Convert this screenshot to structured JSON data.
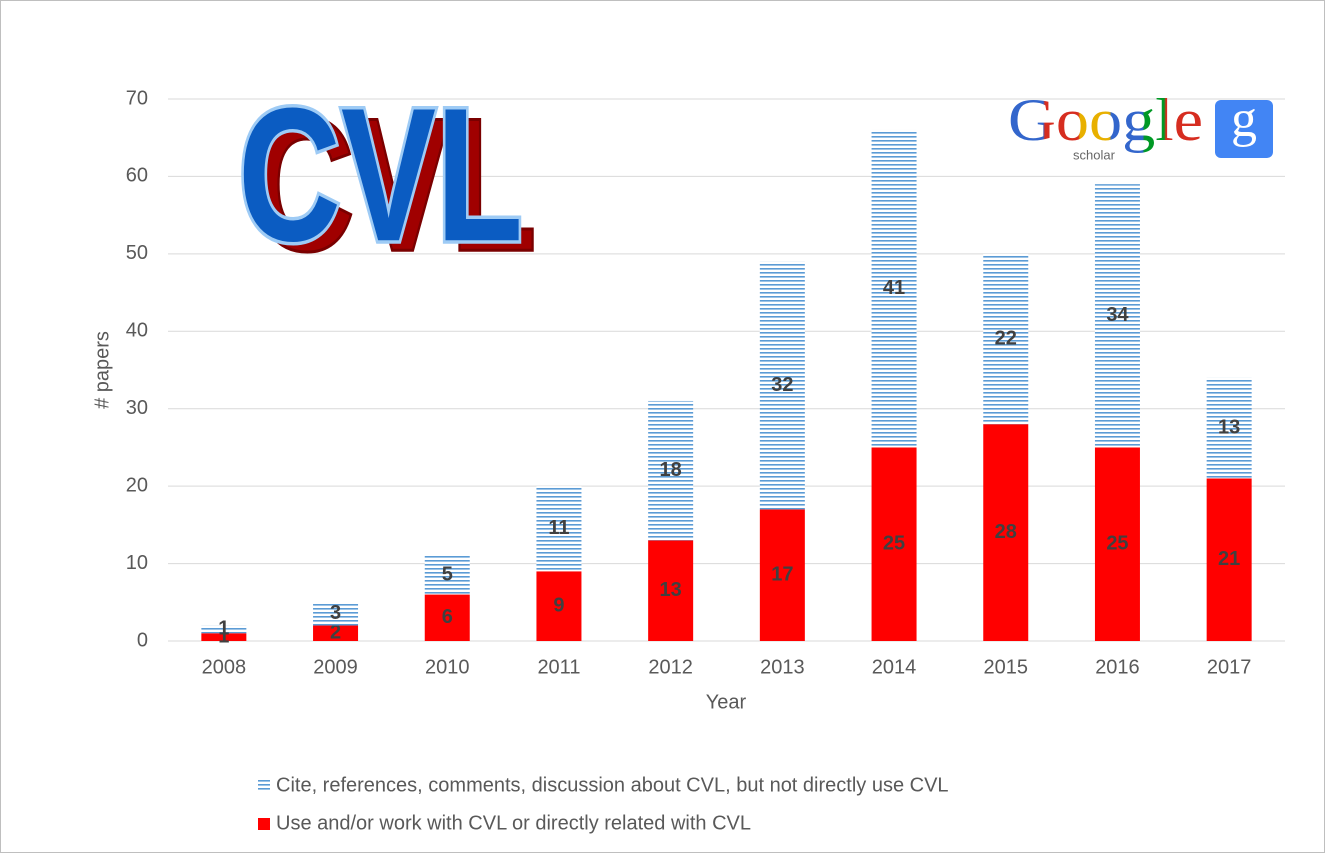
{
  "chart_data": {
    "type": "stacked_bar",
    "x_label": "Year",
    "y_label": "# papers",
    "categories": [
      "2008",
      "2009",
      "2010",
      "2011",
      "2012",
      "2013",
      "2014",
      "2015",
      "2016",
      "2017"
    ],
    "series": [
      {
        "name": "Cite, references, comments, discussion about CVL, but not directly use CVL",
        "color": "#5b9bd5",
        "hatch": "horizontal",
        "values": [
          1,
          3,
          5,
          11,
          18,
          32,
          41,
          22,
          34,
          13
        ]
      },
      {
        "name": "Use and/or work with CVL or directly related with CVL",
        "color": "#ff0000",
        "values": [
          1,
          2,
          6,
          9,
          13,
          17,
          25,
          28,
          25,
          21
        ]
      }
    ],
    "ylim": [
      0,
      70
    ],
    "yticks": [
      0,
      10,
      20,
      30,
      40,
      50,
      60,
      70
    ],
    "grid": true,
    "legend": "bottom",
    "annotations": [
      "CVL",
      "Google",
      "scholar",
      "g"
    ]
  }
}
